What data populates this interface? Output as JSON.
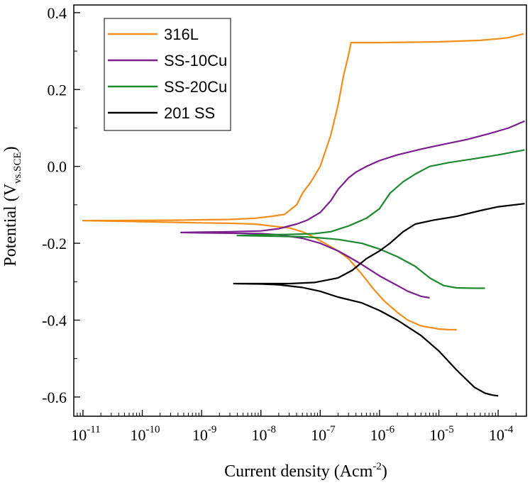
{
  "chart_data": {
    "type": "line",
    "title": "",
    "xscale": "log",
    "xlim": [
      7e-12,
      0.0003
    ],
    "ylim": [
      -0.65,
      0.42
    ],
    "xlabel": {
      "main": "Current density (Acm",
      "sup": "-2",
      "close": ")"
    },
    "ylabel": {
      "main": "Potential (V",
      "sub": "vs.SCE",
      "close": ")"
    },
    "x_ticks": [
      {
        "base": "10",
        "exp": "-11",
        "value": 1e-11
      },
      {
        "base": "10",
        "exp": "-10",
        "value": 1e-10
      },
      {
        "base": "10",
        "exp": "-9",
        "value": 1e-09
      },
      {
        "base": "10",
        "exp": "-8",
        "value": 1e-08
      },
      {
        "base": "10",
        "exp": "-7",
        "value": 1e-07
      },
      {
        "base": "10",
        "exp": "-6",
        "value": 1e-06
      },
      {
        "base": "10",
        "exp": "-5",
        "value": 1e-05
      },
      {
        "base": "10",
        "exp": "-4",
        "value": 0.0001
      }
    ],
    "y_ticks": [
      {
        "label": "0.4",
        "value": 0.4
      },
      {
        "label": "0.2",
        "value": 0.2
      },
      {
        "label": "0.0",
        "value": 0.0
      },
      {
        "label": "-0.2",
        "value": -0.2
      },
      {
        "label": "-0.4",
        "value": -0.4
      },
      {
        "label": "-0.6",
        "value": -0.6
      }
    ],
    "legend_position": "top-left",
    "series": [
      {
        "name": "316L",
        "color": "#f28e1c",
        "x": [
          2e-05,
          1.5e-05,
          1e-05,
          5e-06,
          3e-06,
          2e-06,
          1.2e-06,
          8e-07,
          5e-07,
          3e-07,
          2e-07,
          1.2e-07,
          8e-08,
          5e-08,
          3e-08,
          1.5e-08,
          8e-09,
          3e-09,
          1e-09,
          1e-10,
          1e-11,
          3e-10,
          1e-09,
          3e-09,
          8e-09,
          1.5e-08,
          2.5e-08,
          4e-08,
          5e-08,
          7e-08,
          1e-07,
          1.5e-07,
          2e-07,
          2.5e-07,
          2.8e-07,
          3e-07,
          3.3e-07,
          1e-06,
          1e-05,
          5e-05,
          0.0001,
          0.00015,
          0.0002,
          0.00027
        ],
        "y": [
          -0.425,
          -0.425,
          -0.423,
          -0.415,
          -0.4,
          -0.38,
          -0.35,
          -0.32,
          -0.28,
          -0.24,
          -0.22,
          -0.2,
          -0.185,
          -0.17,
          -0.16,
          -0.155,
          -0.15,
          -0.148,
          -0.147,
          -0.144,
          -0.141,
          -0.14,
          -0.139,
          -0.138,
          -0.135,
          -0.13,
          -0.125,
          -0.1,
          -0.07,
          -0.04,
          0.0,
          0.08,
          0.16,
          0.24,
          0.27,
          0.29,
          0.322,
          0.322,
          0.324,
          0.328,
          0.332,
          0.335,
          0.34,
          0.345
        ]
      },
      {
        "name": "SS-10Cu",
        "color": "#7b1f8e",
        "x": [
          7e-06,
          5e-06,
          3e-06,
          2e-06,
          1e-06,
          5e-07,
          3e-07,
          2e-07,
          1e-07,
          5e-08,
          2e-08,
          1e-08,
          4e-09,
          1e-09,
          4.5e-10,
          1e-09,
          3e-09,
          1e-08,
          2e-08,
          4e-08,
          6e-08,
          1e-07,
          1.5e-07,
          2e-07,
          3e-07,
          4e-07,
          6e-07,
          1e-06,
          2e-06,
          5e-06,
          1e-05,
          3e-05,
          7e-05,
          0.00015,
          0.00028
        ],
        "y": [
          -0.342,
          -0.338,
          -0.325,
          -0.31,
          -0.285,
          -0.255,
          -0.235,
          -0.22,
          -0.2,
          -0.187,
          -0.178,
          -0.175,
          -0.174,
          -0.173,
          -0.172,
          -0.171,
          -0.17,
          -0.168,
          -0.162,
          -0.15,
          -0.14,
          -0.12,
          -0.09,
          -0.06,
          -0.03,
          -0.015,
          0.0,
          0.015,
          0.03,
          0.045,
          0.055,
          0.07,
          0.085,
          0.1,
          0.118
        ]
      },
      {
        "name": "SS-20Cu",
        "color": "#1e8a2e",
        "x": [
          6e-05,
          4e-05,
          2e-05,
          1.2e-05,
          7e-06,
          4e-06,
          2e-06,
          1e-06,
          5e-07,
          2e-07,
          1e-07,
          5e-08,
          2e-08,
          1e-08,
          4e-09,
          1e-08,
          3e-08,
          8e-08,
          1.5e-07,
          3e-07,
          6e-07,
          1e-06,
          1.5e-06,
          2.5e-06,
          4e-06,
          7e-06,
          1.5e-05,
          4e-05,
          0.0001,
          0.00028
        ],
        "y": [
          -0.317,
          -0.317,
          -0.316,
          -0.31,
          -0.29,
          -0.26,
          -0.235,
          -0.215,
          -0.2,
          -0.19,
          -0.186,
          -0.183,
          -0.182,
          -0.181,
          -0.18,
          -0.178,
          -0.177,
          -0.175,
          -0.17,
          -0.155,
          -0.135,
          -0.11,
          -0.07,
          -0.04,
          -0.02,
          0.0,
          0.01,
          0.02,
          0.03,
          0.043
        ]
      },
      {
        "name": "201 SS",
        "color": "#000000",
        "x": [
          0.0001,
          8e-05,
          6e-05,
          4e-05,
          2e-05,
          1e-05,
          5e-06,
          2e-06,
          1e-06,
          5e-07,
          2e-07,
          1e-07,
          5e-08,
          2e-08,
          1e-08,
          3.5e-09,
          1e-08,
          3e-08,
          8e-08,
          2e-07,
          3.5e-07,
          6e-07,
          1e-06,
          1.5e-06,
          2.5e-06,
          4e-06,
          8e-06,
          2e-05,
          5e-05,
          0.0001,
          0.00028
        ],
        "y": [
          -0.597,
          -0.595,
          -0.59,
          -0.575,
          -0.53,
          -0.48,
          -0.44,
          -0.4,
          -0.375,
          -0.355,
          -0.34,
          -0.325,
          -0.315,
          -0.308,
          -0.306,
          -0.305,
          -0.305,
          -0.305,
          -0.302,
          -0.29,
          -0.27,
          -0.24,
          -0.22,
          -0.2,
          -0.17,
          -0.15,
          -0.14,
          -0.13,
          -0.115,
          -0.105,
          -0.097
        ]
      }
    ]
  }
}
